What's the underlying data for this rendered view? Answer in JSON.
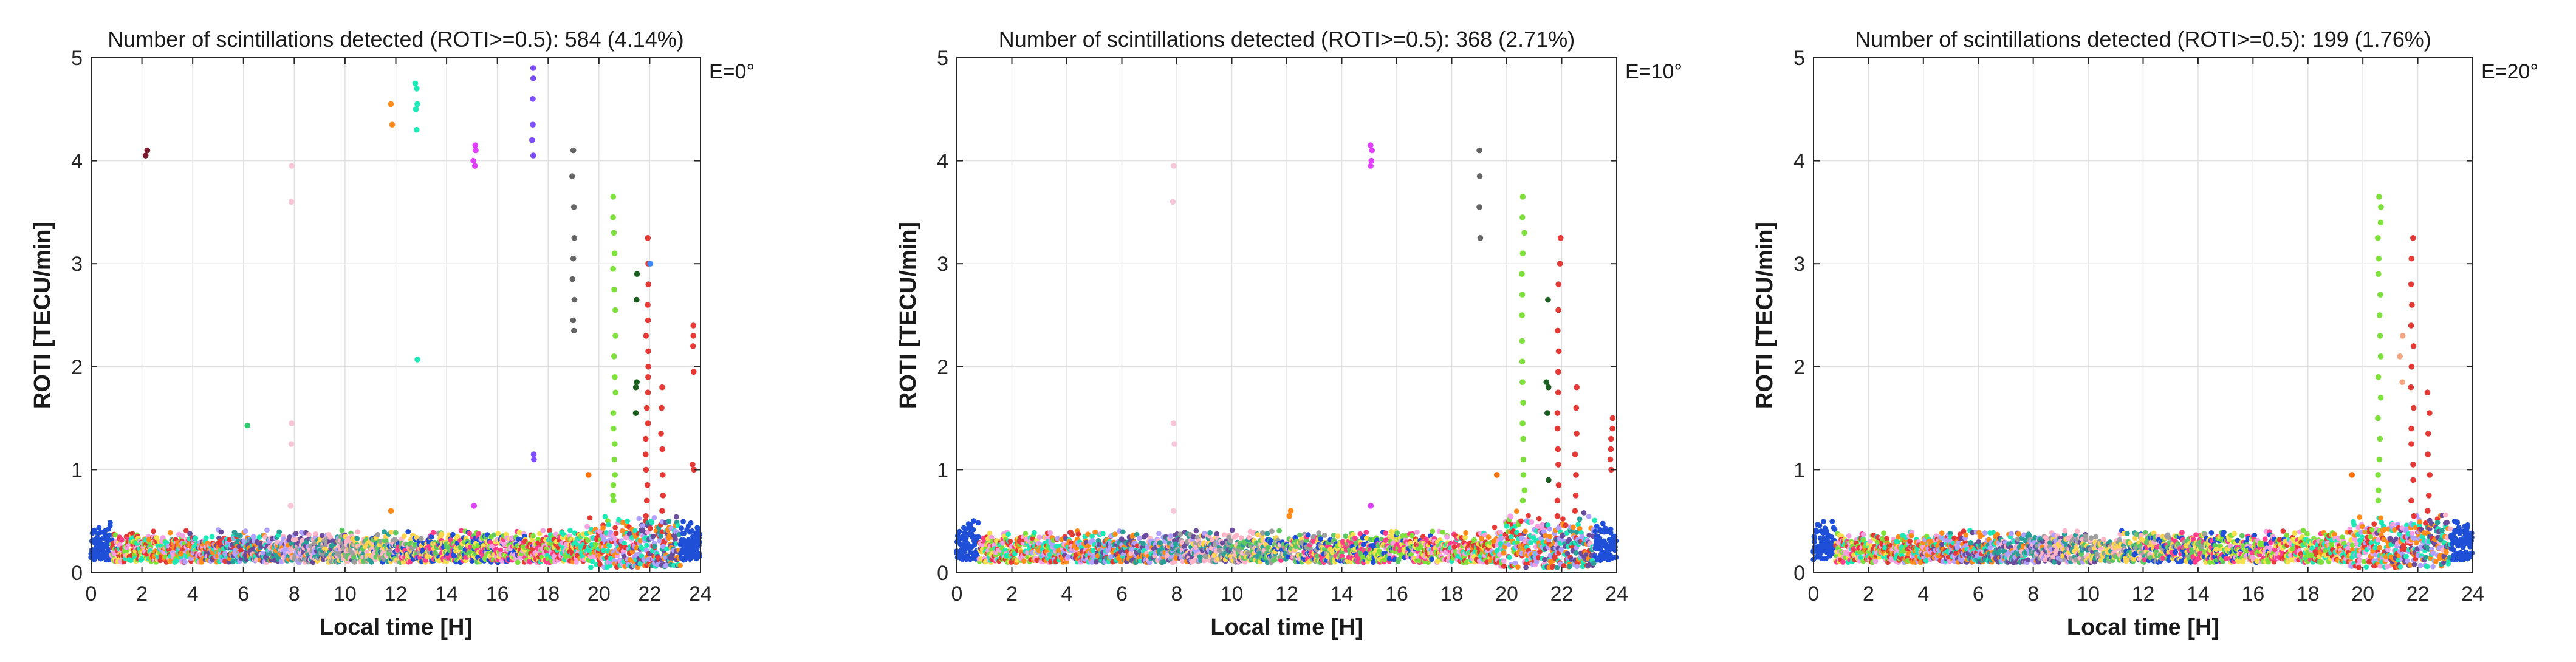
{
  "chart_data": [
    {
      "type": "scatter",
      "title": "Number of scintillations detected (ROTI>=0.5): 584 (4.14%)",
      "annotation": "E=0°",
      "xlabel": "Local time [H]",
      "ylabel": "ROTI [TECU/min]",
      "xlim": [
        0,
        24
      ],
      "ylim": [
        0,
        5
      ],
      "xticks": [
        0,
        2,
        4,
        6,
        8,
        10,
        12,
        14,
        16,
        18,
        20,
        22,
        24
      ],
      "yticks": [
        0,
        1,
        2,
        3,
        4,
        5
      ],
      "grid": true,
      "seed": 11,
      "spikes": [
        {
          "x": 2.2,
          "y": [
            4.1,
            4.05
          ],
          "color": "#7b1c2e"
        },
        {
          "x": 6.1,
          "y": [
            1.43
          ],
          "color": "#2ecc71"
        },
        {
          "x": 7.9,
          "y": [
            3.95,
            3.6,
            1.45,
            1.25,
            0.65
          ],
          "color": "#f7c6d9"
        },
        {
          "x": 11.8,
          "y": [
            4.55,
            4.35,
            0.6
          ],
          "color": "#ff8c1a"
        },
        {
          "x": 12.8,
          "y": [
            4.75,
            4.7,
            4.55,
            4.5,
            4.3,
            2.07
          ],
          "color": "#1de9b6"
        },
        {
          "x": 15.1,
          "y": [
            4.15,
            4.1,
            4.0,
            3.95,
            0.65
          ],
          "color": "#e040fb"
        },
        {
          "x": 17.4,
          "y": [
            4.9,
            4.8,
            4.6,
            4.35,
            4.2,
            4.05,
            1.15,
            1.1
          ],
          "color": "#7c4dff"
        },
        {
          "x": 19.0,
          "y": [
            4.1,
            3.85,
            3.55,
            3.25,
            3.05,
            2.85,
            2.65,
            2.45,
            2.35
          ],
          "color": "#666666"
        },
        {
          "x": 19.6,
          "y": [
            0.95
          ],
          "color": "#ff6f00"
        },
        {
          "x": 20.6,
          "y": [
            3.65,
            3.45,
            3.3,
            3.1,
            2.95,
            2.75,
            2.55,
            2.3,
            2.1,
            1.9,
            1.75,
            1.55,
            1.4,
            1.25,
            1.1,
            0.95,
            0.85,
            0.75,
            0.7
          ],
          "color": "#7ee03a"
        },
        {
          "x": 21.5,
          "y": [
            2.9,
            2.65,
            1.85,
            1.8,
            1.55
          ],
          "color": "#1b5e20"
        },
        {
          "x": 21.9,
          "y": [
            3.25,
            3.0,
            2.8,
            2.6,
            2.45,
            2.3,
            2.15,
            2.0,
            1.9,
            1.75,
            1.6,
            1.45,
            1.3,
            1.15,
            1.0,
            0.85,
            0.7,
            0.55
          ],
          "color": "#e53935"
        },
        {
          "x": 22.5,
          "y": [
            1.8,
            1.6,
            1.35,
            1.2,
            0.95,
            0.75,
            0.6
          ],
          "color": "#e53935"
        },
        {
          "x": 22.0,
          "y": [
            3.0
          ],
          "color": "#3d8bff"
        },
        {
          "x": 23.7,
          "y": [
            2.4,
            2.3,
            2.2,
            1.95,
            1.05,
            1.0
          ],
          "color": "#e53935"
        }
      ]
    },
    {
      "type": "scatter",
      "title": "Number of scintillations detected (ROTI>=0.5): 368 (2.71%)",
      "annotation": "E=10°",
      "xlabel": "Local time [H]",
      "ylabel": "ROTI [TECU/min]",
      "xlim": [
        0,
        24
      ],
      "ylim": [
        0,
        5
      ],
      "xticks": [
        0,
        2,
        4,
        6,
        8,
        10,
        12,
        14,
        16,
        18,
        20,
        22,
        24
      ],
      "yticks": [
        0,
        1,
        2,
        3,
        4,
        5
      ],
      "grid": true,
      "seed": 23,
      "spikes": [
        {
          "x": 7.9,
          "y": [
            3.95,
            3.6,
            1.45,
            1.25,
            0.6
          ],
          "color": "#f7c6d9"
        },
        {
          "x": 12.1,
          "y": [
            0.6,
            0.55
          ],
          "color": "#ff8c1a"
        },
        {
          "x": 15.1,
          "y": [
            4.15,
            4.1,
            4.0,
            3.95,
            0.65
          ],
          "color": "#e040fb"
        },
        {
          "x": 19.0,
          "y": [
            4.1,
            3.85,
            3.55,
            3.25
          ],
          "color": "#666666"
        },
        {
          "x": 19.6,
          "y": [
            0.95
          ],
          "color": "#ff6f00"
        },
        {
          "x": 20.6,
          "y": [
            3.65,
            3.45,
            3.3,
            3.1,
            2.9,
            2.7,
            2.5,
            2.25,
            2.05,
            1.85,
            1.65,
            1.45,
            1.3,
            1.1,
            0.95,
            0.8,
            0.7
          ],
          "color": "#7ee03a"
        },
        {
          "x": 21.5,
          "y": [
            2.65,
            1.85,
            1.8,
            1.55,
            0.9
          ],
          "color": "#1b5e20"
        },
        {
          "x": 21.9,
          "y": [
            3.25,
            3.0,
            2.8,
            2.55,
            2.35,
            2.15,
            1.95,
            1.75,
            1.55,
            1.4,
            1.2,
            1.05,
            0.85,
            0.7,
            0.55
          ],
          "color": "#e53935"
        },
        {
          "x": 22.5,
          "y": [
            1.8,
            1.6,
            1.35,
            1.15,
            0.95,
            0.75,
            0.6
          ],
          "color": "#e53935"
        },
        {
          "x": 23.8,
          "y": [
            1.5,
            1.4,
            1.3,
            1.2,
            1.1,
            1.0
          ],
          "color": "#e53935"
        }
      ]
    },
    {
      "type": "scatter",
      "title": "Number of scintillations detected (ROTI>=0.5): 199 (1.76%)",
      "annotation": "E=20°",
      "xlabel": "Local time [H]",
      "ylabel": "ROTI [TECU/min]",
      "xlim": [
        0,
        24
      ],
      "ylim": [
        0,
        5
      ],
      "xticks": [
        0,
        2,
        4,
        6,
        8,
        10,
        12,
        14,
        16,
        18,
        20,
        22,
        24
      ],
      "yticks": [
        0,
        1,
        2,
        3,
        4,
        5
      ],
      "grid": true,
      "seed": 37,
      "spikes": [
        {
          "x": 19.6,
          "y": [
            0.95
          ],
          "color": "#ff6f00"
        },
        {
          "x": 20.6,
          "y": [
            3.65,
            3.55,
            3.4,
            3.25,
            3.05,
            2.9,
            2.7,
            2.5,
            2.3,
            2.1,
            1.9,
            1.7,
            1.5,
            1.3,
            1.1,
            0.95,
            0.8,
            0.7
          ],
          "color": "#7ee03a"
        },
        {
          "x": 21.4,
          "y": [
            2.3,
            2.1,
            1.85
          ],
          "color": "#f4a582"
        },
        {
          "x": 21.8,
          "y": [
            3.25,
            3.05,
            2.8,
            2.6,
            2.4,
            2.2,
            2.0,
            1.8,
            1.6,
            1.4,
            1.25,
            1.05,
            0.9,
            0.7,
            0.55
          ],
          "color": "#e53935"
        },
        {
          "x": 22.4,
          "y": [
            1.75,
            1.55,
            1.35,
            1.15,
            0.95,
            0.75,
            0.6
          ],
          "color": "#e53935"
        }
      ]
    }
  ],
  "palette": [
    "#1f4fd6",
    "#ff3d8b",
    "#f4e04d",
    "#7ee03a",
    "#f4a0e0",
    "#e53935",
    "#1de9b6",
    "#ff8c1a",
    "#b0a0ff",
    "#6a4c9c",
    "#2aa198",
    "#ffb3c6",
    "#9e9e9e",
    "#ffd54f",
    "#5ec962"
  ]
}
